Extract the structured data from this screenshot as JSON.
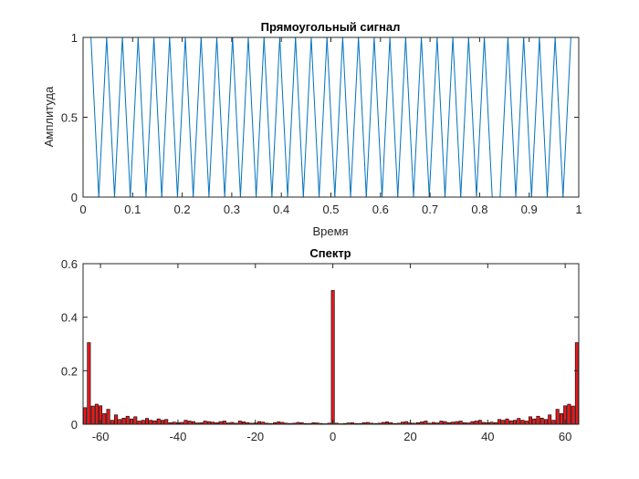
{
  "chart_data": [
    {
      "type": "line",
      "title": "Прямоугольный сигнал",
      "xlabel": "Время",
      "ylabel": "Амплитуда",
      "xlim": [
        0,
        1
      ],
      "ylim": [
        0,
        1
      ],
      "x_ticks": [
        0,
        0.1,
        0.2,
        0.3,
        0.4,
        0.5,
        0.6,
        0.7,
        0.8,
        0.9,
        1
      ],
      "x_tick_labels": [
        "0",
        "0.1",
        "0.2",
        "0.3",
        "0.4",
        "0.5",
        "0.6",
        "0.7",
        "0.8",
        "0.9",
        "1"
      ],
      "y_ticks": [
        0,
        0.5,
        1
      ],
      "y_tick_labels": [
        "0",
        "0.5",
        "1"
      ],
      "grid": false,
      "line_color": "#0072bd",
      "series": [
        {
          "x": [
            0.0,
            0.0159,
            0.0317,
            0.0476,
            0.0635,
            0.0794,
            0.0952,
            0.1111,
            0.127,
            0.1429,
            0.1587,
            0.1746,
            0.1905,
            0.2063,
            0.2222,
            0.2381,
            0.254,
            0.2698,
            0.2857,
            0.3016,
            0.3175,
            0.3333,
            0.3492,
            0.3651,
            0.381,
            0.3968,
            0.4127,
            0.4286,
            0.4444,
            0.4603,
            0.4762,
            0.4921,
            0.5079,
            0.5238,
            0.5397,
            0.5556,
            0.5714,
            0.5873,
            0.6032,
            0.619,
            0.6349,
            0.6508,
            0.6667,
            0.6825,
            0.6984,
            0.7143,
            0.7302,
            0.746,
            0.7619,
            0.7778,
            0.7937,
            0.8095,
            0.8254,
            0.8413,
            0.8571,
            0.873,
            0.8889,
            0.9048,
            0.9206,
            0.9365,
            0.9524,
            0.9683,
            0.9841,
            1.0
          ],
          "y": [
            1,
            1,
            0,
            1,
            0,
            1,
            0,
            1,
            0,
            1,
            0,
            1,
            0,
            1,
            0,
            1,
            0,
            1,
            0,
            1,
            0,
            1,
            0,
            1,
            0,
            1,
            0,
            1,
            0,
            1,
            0,
            1,
            0,
            1,
            0,
            1,
            0,
            1,
            0,
            1,
            0,
            1,
            0,
            1,
            0,
            1,
            0,
            1,
            0,
            1,
            0,
            1,
            0,
            0,
            1,
            0,
            1,
            0,
            1,
            0,
            1,
            0,
            1,
            1
          ]
        }
      ]
    },
    {
      "type": "bar",
      "title": "Спектр",
      "xlabel": "",
      "ylabel": "",
      "xlim": [
        -64.5,
        63.5
      ],
      "ylim": [
        0,
        0.6
      ],
      "x_ticks": [
        -60,
        -40,
        -20,
        0,
        20,
        40,
        60
      ],
      "x_tick_labels": [
        "-60",
        "-40",
        "-20",
        "0",
        "20",
        "40",
        "60"
      ],
      "y_ticks": [
        0,
        0.2,
        0.4,
        0.6
      ],
      "y_tick_labels": [
        "0",
        "0.2",
        "0.4",
        "0.6"
      ],
      "grid": false,
      "bar_color": "#e41a1c",
      "bar_edge_color": "#000000",
      "x_start": -64,
      "x_step": 1,
      "values": [
        0.062,
        0.305,
        0.068,
        0.075,
        0.069,
        0.04,
        0.056,
        0.015,
        0.035,
        0.018,
        0.023,
        0.03,
        0.02,
        0.028,
        0.012,
        0.015,
        0.022,
        0.015,
        0.013,
        0.02,
        0.015,
        0.018,
        0.006,
        0.008,
        0.006,
        0.007,
        0.015,
        0.012,
        0.01,
        0.005,
        0.006,
        0.012,
        0.01,
        0.008,
        0.006,
        0.01,
        0.012,
        0.005,
        0.007,
        0.004,
        0.012,
        0.009,
        0.006,
        0.004,
        0.005,
        0.01,
        0.008,
        0.004,
        0.003,
        0.006,
        0.009,
        0.007,
        0.004,
        0.003,
        0.004,
        0.007,
        0.006,
        0.003,
        0.003,
        0.006,
        0.005,
        0.003,
        0.002,
        0.004,
        0.5,
        0.004,
        0.002,
        0.003,
        0.005,
        0.006,
        0.003,
        0.003,
        0.006,
        0.007,
        0.004,
        0.003,
        0.004,
        0.007,
        0.009,
        0.006,
        0.003,
        0.004,
        0.008,
        0.01,
        0.005,
        0.004,
        0.006,
        0.009,
        0.012,
        0.004,
        0.007,
        0.005,
        0.012,
        0.01,
        0.006,
        0.008,
        0.01,
        0.012,
        0.006,
        0.005,
        0.01,
        0.012,
        0.015,
        0.007,
        0.006,
        0.008,
        0.006,
        0.018,
        0.015,
        0.02,
        0.013,
        0.015,
        0.022,
        0.015,
        0.012,
        0.028,
        0.02,
        0.03,
        0.023,
        0.018,
        0.035,
        0.015,
        0.056,
        0.04,
        0.069,
        0.075,
        0.068,
        0.305
      ]
    }
  ]
}
